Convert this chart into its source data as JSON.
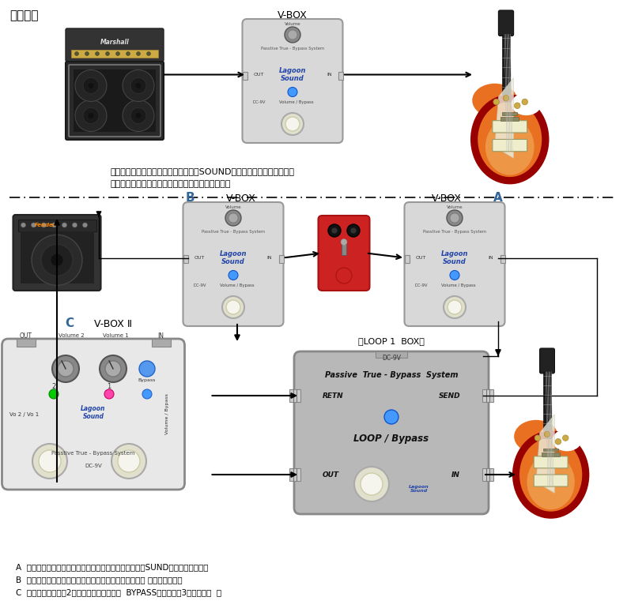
{
  "bg_color": "#ffffff",
  "title_top": "通常使用",
  "text_line1": "ギター側で音量調節することにより、SOUNDのニュアンスが変わります",
  "text_line2": "純粋に音量調節したい場合におすすめアイテムです",
  "footer_A": "A  位置に設置することにより入力感度が低くなり鱈感なSUNDが鱈感になります",
  "footer_B": "B  位置は通常使用で、音量調節したい場合におすすめの 位置になります",
  "footer_C": "C  により音量調節が2プリセットできます（  BYPASSを入れると3ポジション  ）",
  "vbox_label": "V-BOX",
  "vbox_b_label": "B",
  "vbox_a_label": "A",
  "vbox2_label": "V-BOX Ⅱ",
  "vbox2_sub": "C",
  "loop_label": "（LOOP 1  BOX）",
  "lagoon_color": "#2244aa",
  "box_fill": "#d4d4d4",
  "box_stroke": "#888888",
  "red_pedal": "#cc2222",
  "green_led": "#00cc00",
  "pink_led": "#ff44aa",
  "blue_led": "#4499ff"
}
